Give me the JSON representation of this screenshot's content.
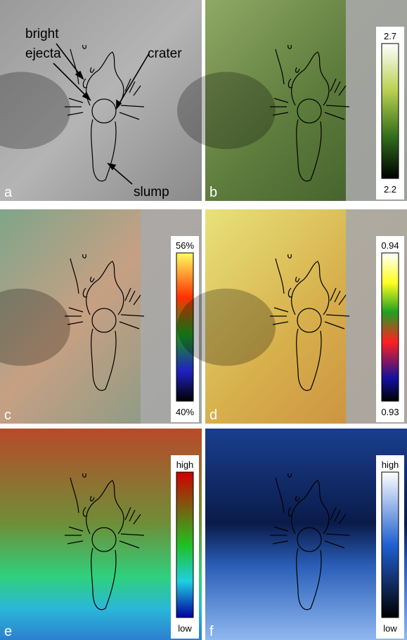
{
  "panels": [
    {
      "label": "a",
      "annotations": [
        "bright",
        "ejecta",
        "crater",
        "slump"
      ]
    },
    {
      "label": "b",
      "colorbar": {
        "top": "2.7",
        "bottom": "2.2"
      }
    },
    {
      "label": "c",
      "colorbar": {
        "top": "56%",
        "bottom": "40%"
      }
    },
    {
      "label": "d",
      "colorbar": {
        "top": "0.94",
        "bottom": "0.93"
      }
    },
    {
      "label": "e",
      "colorbar": {
        "top": "high",
        "bottom": "low"
      }
    },
    {
      "label": "f",
      "colorbar": {
        "top": "high",
        "bottom": "low"
      }
    }
  ]
}
